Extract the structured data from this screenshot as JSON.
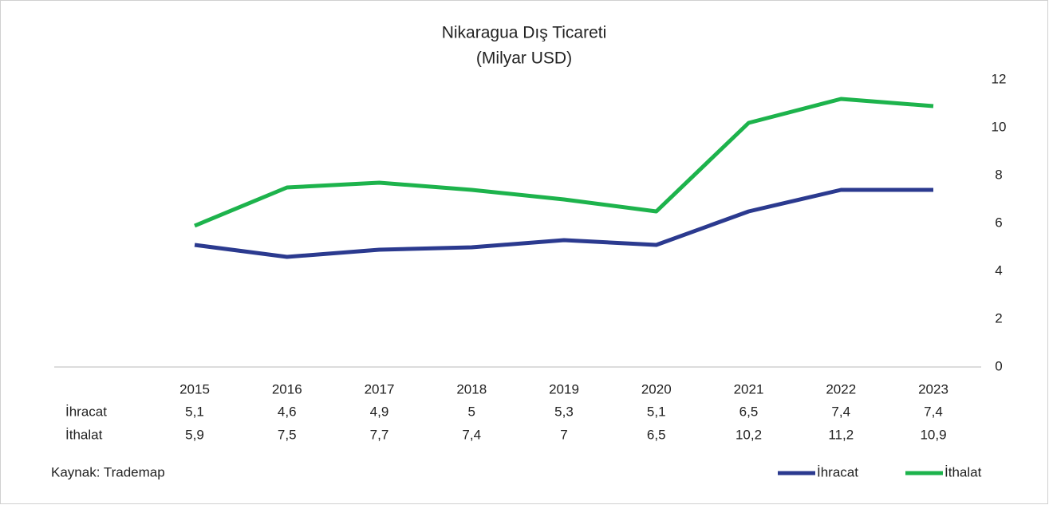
{
  "chart_data": {
    "type": "line",
    "title": "Nikaragua Dış Ticareti",
    "subtitle": "(Milyar USD)",
    "categories": [
      "2015",
      "2016",
      "2017",
      "2018",
      "2019",
      "2020",
      "2021",
      "2022",
      "2023"
    ],
    "series": [
      {
        "name": "İhracat",
        "color": "#2b3a8f",
        "values": [
          5.1,
          4.6,
          4.9,
          5,
          5.3,
          5.1,
          6.5,
          7.4,
          7.4
        ],
        "value_labels": [
          "5,1",
          "4,6",
          "4,9",
          "5",
          "5,3",
          "5,1",
          "6,5",
          "7,4",
          "7,4"
        ]
      },
      {
        "name": "İthalat",
        "color": "#1db34c",
        "values": [
          5.9,
          7.5,
          7.7,
          7.4,
          7,
          6.5,
          10.2,
          11.2,
          10.9
        ],
        "value_labels": [
          "5,9",
          "7,5",
          "7,7",
          "7,4",
          "7",
          "6,5",
          "10,2",
          "11,2",
          "10,9"
        ]
      }
    ],
    "ylim": [
      0,
      12
    ],
    "yticks": [
      0,
      2,
      4,
      6,
      8,
      10,
      12
    ],
    "source": "Kaynak: Trademap"
  }
}
